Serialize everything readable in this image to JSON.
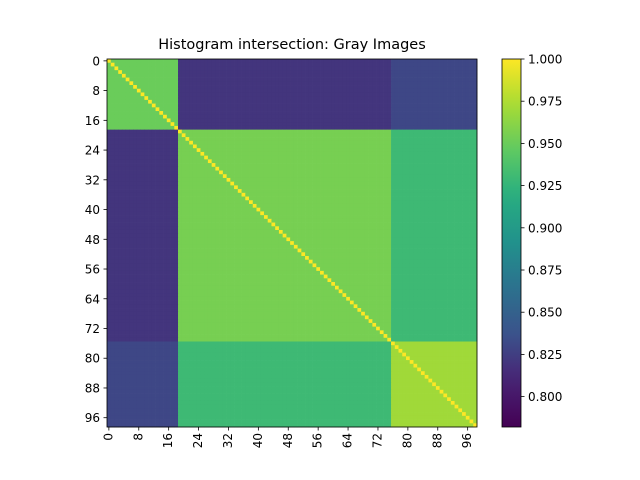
{
  "chart_data": {
    "type": "heatmap",
    "title": "Histogram intersection: Gray Images",
    "xlabel": "",
    "ylabel": "",
    "n": 99,
    "colormap": "viridis",
    "color_range": [
      0.782,
      1.0
    ],
    "x_tick_values": [
      0,
      8,
      16,
      24,
      32,
      40,
      48,
      56,
      64,
      72,
      80,
      88,
      96
    ],
    "x_tick_labels": [
      "0",
      "8",
      "16",
      "24",
      "32",
      "40",
      "48",
      "56",
      "64",
      "72",
      "80",
      "88",
      "96"
    ],
    "y_tick_values": [
      0,
      8,
      16,
      24,
      32,
      40,
      48,
      56,
      64,
      72,
      80,
      88,
      96
    ],
    "y_tick_labels": [
      "0",
      "8",
      "16",
      "24",
      "32",
      "40",
      "48",
      "56",
      "64",
      "72",
      "80",
      "88",
      "96"
    ],
    "colorbar_tick_values": [
      0.8,
      0.825,
      0.85,
      0.875,
      0.9,
      0.925,
      0.95,
      0.975,
      1.0
    ],
    "colorbar_tick_labels": [
      "0.800",
      "0.825",
      "0.850",
      "0.875",
      "0.900",
      "0.925",
      "0.950",
      "0.975",
      "1.000"
    ],
    "blocks": [
      {
        "rows": [
          0,
          18
        ],
        "cols": [
          0,
          18
        ],
        "value": 0.95
      },
      {
        "rows": [
          0,
          18
        ],
        "cols": [
          19,
          75
        ],
        "value": 0.82
      },
      {
        "rows": [
          0,
          18
        ],
        "cols": [
          76,
          98
        ],
        "value": 0.83
      },
      {
        "rows": [
          19,
          75
        ],
        "cols": [
          19,
          75
        ],
        "value": 0.955
      },
      {
        "rows": [
          19,
          75
        ],
        "cols": [
          76,
          98
        ],
        "value": 0.93
      },
      {
        "rows": [
          76,
          98
        ],
        "cols": [
          76,
          98
        ],
        "value": 0.97
      },
      {
        "rows": [
          19,
          98
        ],
        "cols": [
          0,
          18
        ],
        "value": 0.82
      }
    ],
    "diagonal_value": 1.0
  }
}
